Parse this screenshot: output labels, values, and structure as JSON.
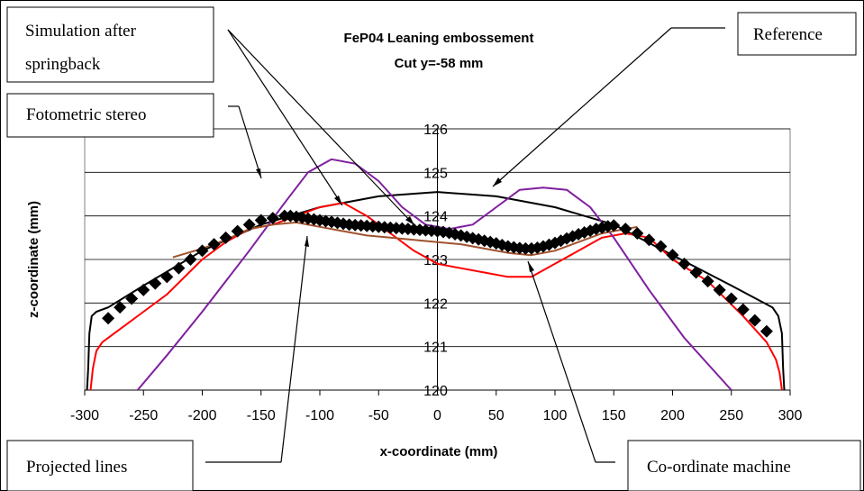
{
  "chart_data": {
    "type": "line",
    "title": "FeP04 Leaning embossement",
    "subtitle": "Cut y=-58 mm",
    "xlabel": "x-coordinate (mm)",
    "ylabel": "z-coordinate (mm)",
    "xlim": [
      -300,
      300
    ],
    "ylim": [
      120,
      126
    ],
    "xticks": [
      "-300",
      "-250",
      "-200",
      "-150",
      "-100",
      "-50",
      "0",
      "50",
      "100",
      "150",
      "200",
      "250",
      "300"
    ],
    "yticks": [
      "120",
      "121",
      "122",
      "123",
      "124",
      "125",
      "126"
    ],
    "grid": "horizontal",
    "series": [
      {
        "key": "reference",
        "color": "#000000",
        "style": "line",
        "x": [
          -298,
          -297,
          -296,
          -294,
          -290,
          -280,
          -250,
          -200,
          -150,
          -100,
          -50,
          0,
          50,
          100,
          150,
          200,
          250,
          285,
          290,
          293,
          294,
          295
        ],
        "y": [
          120.0,
          120.5,
          121.3,
          121.7,
          121.8,
          121.9,
          122.4,
          123.2,
          123.8,
          124.2,
          124.45,
          124.55,
          124.45,
          124.2,
          123.8,
          123.1,
          122.4,
          121.9,
          121.7,
          121.3,
          120.5,
          120.0
        ]
      },
      {
        "key": "simulation",
        "color": "#ff0000",
        "style": "line",
        "x": [
          -295,
          -293,
          -290,
          -285,
          -270,
          -250,
          -230,
          -200,
          -180,
          -160,
          -140,
          -120,
          -100,
          -80,
          -60,
          -40,
          -20,
          0,
          20,
          40,
          60,
          80,
          100,
          120,
          140,
          160,
          180,
          200,
          230,
          260,
          280,
          288,
          291,
          293
        ],
        "y": [
          120.0,
          120.5,
          120.9,
          121.1,
          121.4,
          121.8,
          122.2,
          123.0,
          123.4,
          123.7,
          123.8,
          124.0,
          124.2,
          124.3,
          124.0,
          123.6,
          123.2,
          122.9,
          122.8,
          122.7,
          122.6,
          122.6,
          122.9,
          123.2,
          123.5,
          123.6,
          123.5,
          123.0,
          122.5,
          121.7,
          121.1,
          120.7,
          120.4,
          120.0
        ]
      },
      {
        "key": "fotometric",
        "color": "#7f1f9f",
        "style": "line",
        "x": [
          -255,
          -230,
          -200,
          -160,
          -130,
          -110,
          -90,
          -70,
          -50,
          -30,
          -10,
          10,
          30,
          50,
          70,
          90,
          110,
          130,
          150,
          180,
          210,
          240,
          250
        ],
        "y": [
          120.0,
          120.8,
          121.8,
          123.2,
          124.3,
          125.0,
          125.3,
          125.2,
          124.8,
          124.2,
          123.8,
          123.7,
          123.8,
          124.2,
          124.6,
          124.65,
          124.6,
          124.2,
          123.5,
          122.3,
          121.2,
          120.3,
          120.0
        ]
      },
      {
        "key": "projected",
        "color": "#a0522d",
        "style": "line",
        "x": [
          -225,
          -200,
          -180,
          -160,
          -140,
          -120,
          -100,
          -80,
          -60,
          -40,
          -20,
          0,
          20,
          40,
          60,
          80,
          100,
          120,
          140,
          160,
          170
        ],
        "y": [
          123.05,
          123.25,
          123.45,
          123.7,
          123.8,
          123.85,
          123.75,
          123.65,
          123.55,
          123.5,
          123.45,
          123.4,
          123.35,
          123.25,
          123.15,
          123.1,
          123.2,
          123.4,
          123.6,
          123.7,
          123.75
        ]
      },
      {
        "key": "coordinate",
        "color": "#000000",
        "style": "diamond",
        "x": [
          -280,
          -270,
          -260,
          -250,
          -240,
          -230,
          -220,
          -210,
          -200,
          -190,
          -180,
          -170,
          -160,
          -150,
          -140,
          -130,
          -125,
          -120,
          -115,
          -110,
          -105,
          -100,
          -95,
          -90,
          -85,
          -80,
          -75,
          -70,
          -65,
          -60,
          -55,
          -50,
          -45,
          -40,
          -35,
          -30,
          -25,
          -20,
          -15,
          -10,
          -5,
          0,
          5,
          10,
          15,
          20,
          25,
          30,
          35,
          40,
          45,
          50,
          55,
          60,
          65,
          70,
          75,
          80,
          85,
          90,
          95,
          100,
          105,
          110,
          115,
          120,
          125,
          130,
          135,
          140,
          145,
          150,
          160,
          170,
          180,
          190,
          200,
          210,
          220,
          230,
          240,
          250,
          260,
          270,
          280
        ],
        "y": [
          121.65,
          121.9,
          122.1,
          122.3,
          122.45,
          122.6,
          122.8,
          123.0,
          123.2,
          123.35,
          123.5,
          123.65,
          123.8,
          123.9,
          123.95,
          124.0,
          124.0,
          123.98,
          123.96,
          123.94,
          123.92,
          123.9,
          123.88,
          123.86,
          123.84,
          123.82,
          123.8,
          123.79,
          123.78,
          123.77,
          123.76,
          123.75,
          123.74,
          123.73,
          123.72,
          123.71,
          123.7,
          123.69,
          123.68,
          123.67,
          123.66,
          123.65,
          123.63,
          123.61,
          123.58,
          123.55,
          123.52,
          123.49,
          123.46,
          123.43,
          123.4,
          123.37,
          123.33,
          123.3,
          123.28,
          123.26,
          123.25,
          123.25,
          123.27,
          123.3,
          123.34,
          123.38,
          123.43,
          123.48,
          123.53,
          123.58,
          123.62,
          123.66,
          123.7,
          123.73,
          123.76,
          123.78,
          123.7,
          123.6,
          123.45,
          123.3,
          123.1,
          122.9,
          122.7,
          122.5,
          122.3,
          122.1,
          121.85,
          121.6,
          121.35
        ]
      }
    ]
  },
  "callouts": {
    "simulation": "Simulation after",
    "simulation_line2": "springback",
    "reference": "Reference",
    "fotometric": "Fotometric stereo",
    "projected": "Projected lines",
    "coordinate": "Co-ordinate machine"
  }
}
